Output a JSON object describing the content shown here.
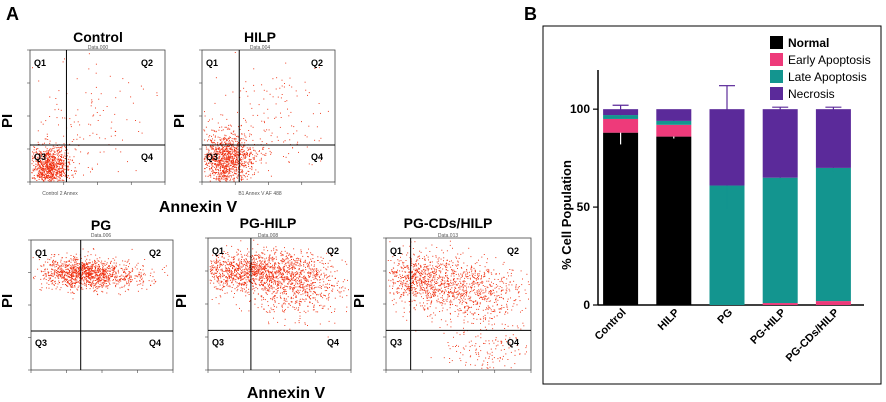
{
  "panel_a": {
    "label": "A",
    "axis_x_label": "Annexin V",
    "axis_y_label": "PI",
    "quadrants": [
      "Q1",
      "Q2",
      "Q3",
      "Q4"
    ],
    "plots": [
      {
        "title": "Control",
        "subtitle": "Data.000",
        "corner_text": "Control 2 Annex"
      },
      {
        "title": "HILP",
        "subtitle": "Data.004",
        "corner_text": "B1 Annex V AF 488"
      },
      {
        "title": "PG",
        "subtitle": "Data.006",
        "corner_text": ""
      },
      {
        "title": "PG-HILP",
        "subtitle": "Data.008",
        "corner_text": ""
      },
      {
        "title": "PG-CDs/HILP",
        "subtitle": "Data.013",
        "corner_text": ""
      }
    ]
  },
  "panel_b": {
    "label": "B"
  },
  "colors": {
    "normal": "#000000",
    "early": "#ee3a7a",
    "late": "#13958f",
    "necrosis": "#5b2a9a",
    "dots": "#ee2200"
  },
  "chart_data": {
    "type": "bar",
    "stacked": true,
    "title": "",
    "xlabel": "",
    "ylabel": "% Cell Population",
    "ylim": [
      0,
      120
    ],
    "yticks": [
      "0",
      "50",
      "100"
    ],
    "categories": [
      "Control",
      "HILP",
      "PG",
      "PG-HILP",
      "PG-CDs/HILP"
    ],
    "series": [
      {
        "name": "Normal",
        "values": [
          88,
          86,
          0,
          0,
          0
        ],
        "errors": [
          6,
          1,
          0,
          0,
          0
        ]
      },
      {
        "name": "Early Apoptosis",
        "values": [
          7,
          6,
          0,
          1,
          2
        ],
        "errors": [
          0,
          0,
          0,
          0,
          0
        ]
      },
      {
        "name": "Late Apoptosis",
        "values": [
          2,
          2,
          61,
          64,
          68
        ],
        "errors": [
          1,
          1,
          12,
          1,
          2
        ]
      },
      {
        "name": "Necrosis",
        "values": [
          3,
          6,
          39,
          35,
          30
        ],
        "errors": [
          2,
          0,
          12,
          1,
          1
        ]
      }
    ],
    "legend_position": "top-right"
  }
}
